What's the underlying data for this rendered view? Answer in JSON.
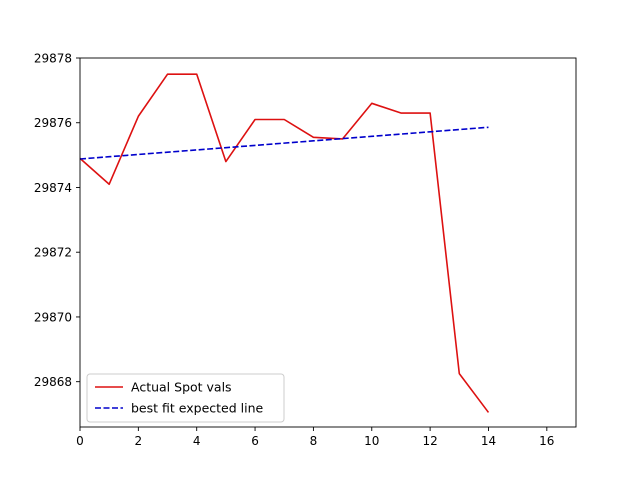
{
  "chart_data": {
    "type": "line",
    "x": [
      0,
      1,
      2,
      3,
      4,
      5,
      6,
      7,
      8,
      9,
      10,
      11,
      12,
      13,
      14
    ],
    "series": [
      {
        "name": "Actual Spot vals",
        "style": "solid",
        "color": "#dd1111",
        "values": [
          29874.9,
          29874.1,
          29876.2,
          29877.5,
          29877.5,
          29874.8,
          29876.1,
          29876.1,
          29875.55,
          29875.5,
          29876.6,
          29876.3,
          29876.3,
          29868.25,
          29867.05
        ]
      },
      {
        "name": "best fit expected line",
        "style": "dashed",
        "color": "#0000cc",
        "values": [
          29874.88,
          29874.95,
          29875.02,
          29875.09,
          29875.16,
          29875.23,
          29875.3,
          29875.37,
          29875.44,
          29875.51,
          29875.58,
          29875.65,
          29875.72,
          29875.79,
          29875.86
        ]
      }
    ],
    "xlim": [
      0,
      17
    ],
    "ylim": [
      29866.6,
      29878.0
    ],
    "xticks": [
      0,
      2,
      4,
      6,
      8,
      10,
      12,
      14,
      16
    ],
    "yticks": [
      29868,
      29870,
      29872,
      29874,
      29876,
      29878
    ],
    "xlabel": "",
    "ylabel": "",
    "title": "",
    "grid": false,
    "legend_position": "lower-left"
  }
}
